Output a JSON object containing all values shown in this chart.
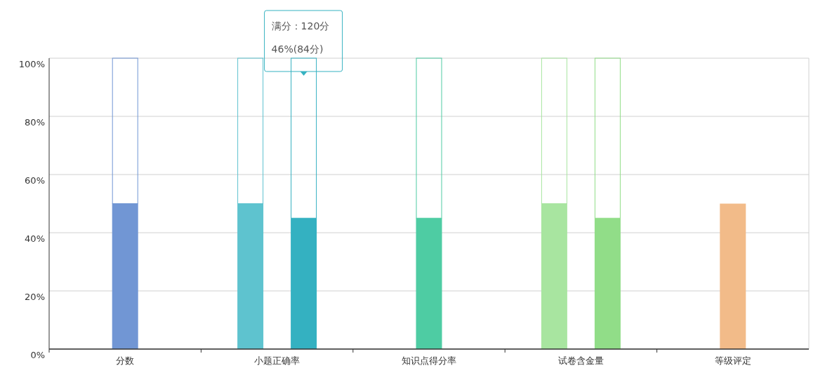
{
  "chart_data": {
    "type": "bar",
    "categories": [
      "分数",
      "小题正确率",
      "知识点得分率",
      "试卷含金量",
      "等级评定"
    ],
    "series": [
      {
        "colors": [
          "#7196d4",
          "#5ec3cf",
          null,
          "#a8e5a0",
          "#f2bb89"
        ],
        "values": [
          50,
          50,
          null,
          50,
          50
        ]
      },
      {
        "colors": [
          null,
          "#34b1c1",
          "#4ecca3",
          "#91dd88",
          null
        ],
        "values": [
          null,
          45,
          45,
          45,
          null
        ]
      },
      {
        "colors": [
          "#7196d4",
          "#5ec3cf",
          null,
          "#a8e5a0",
          null
        ],
        "values": [
          50,
          50,
          null,
          50,
          null
        ],
        "base": [
          50,
          50,
          null,
          50,
          null
        ]
      },
      {
        "colors": [
          null,
          "#34b1c1",
          "#4ecca3",
          "#91dd88",
          null
        ],
        "values": [
          null,
          55,
          55,
          55,
          null
        ],
        "base": [
          null,
          45,
          45,
          45,
          null
        ]
      }
    ],
    "ylim": [
      0,
      100
    ],
    "yticks": [
      {
        "value": 0,
        "label": "0%"
      },
      {
        "value": 20,
        "label": "20%"
      },
      {
        "value": 40,
        "label": "40%"
      },
      {
        "value": 60,
        "label": "60%"
      },
      {
        "value": 80,
        "label": "80%"
      },
      {
        "value": 100,
        "label": "100%"
      }
    ],
    "grid": "y",
    "annotations": [
      "满分：120分",
      "46%(84分)"
    ]
  }
}
